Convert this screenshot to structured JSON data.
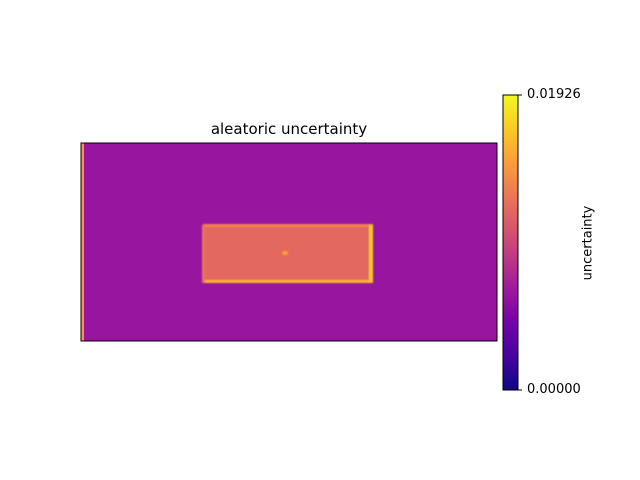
{
  "chart_data": {
    "type": "heatmap",
    "title": "aleatoric uncertainty",
    "colormap": "plasma",
    "colorbar": {
      "label": "uncertainty",
      "min": 0.0,
      "max": 0.01926,
      "tick_labels": [
        "0.01926",
        "0.00000"
      ]
    },
    "background_value": 0.0062,
    "regions": [
      {
        "name": "left-edge-strip",
        "value": 0.0145
      },
      {
        "name": "central-rectangle",
        "value": 0.0118
      },
      {
        "name": "rectangle-top-edge",
        "value": 0.0135
      },
      {
        "name": "rectangle-bottom-edge",
        "value": 0.016
      },
      {
        "name": "rectangle-right-edge",
        "value": 0.017
      },
      {
        "name": "rectangle-left-edge",
        "value": 0.0125
      },
      {
        "name": "center-spot",
        "value": 0.015
      }
    ],
    "axes_ticks_visible": false
  },
  "colors": {
    "plasma_stops": [
      "#0d0887",
      "#46039f",
      "#7201a8",
      "#9c179e",
      "#bd3786",
      "#d8576b",
      "#ed7953",
      "#fb9f3a",
      "#fdca26",
      "#f0f921"
    ]
  }
}
